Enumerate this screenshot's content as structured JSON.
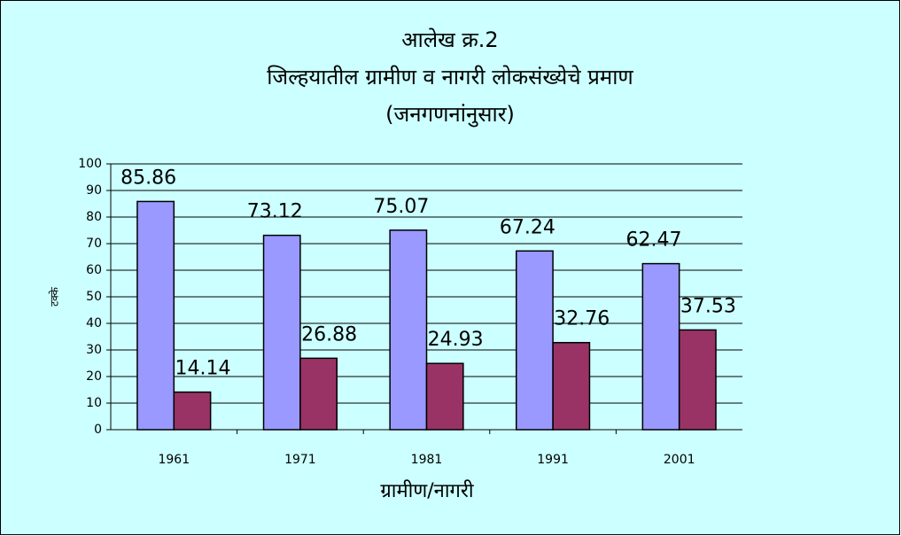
{
  "chart_data": {
    "type": "bar",
    "title": [
      "आलेख क्र.2",
      "जिल्हयातील ग्रामीण व नागरी लोकसंख्येचे प्रमाण",
      "(जनगणनांनुसार)"
    ],
    "x_label": "ग्रामीण/नागरी",
    "y_label": "टक्के",
    "categories": [
      "1961",
      "1971",
      "1981",
      "1991",
      "2001"
    ],
    "series": [
      {
        "color": "#9999ff",
        "values": [
          85.86,
          73.12,
          75.07,
          67.24,
          62.47
        ]
      },
      {
        "color": "#993366",
        "values": [
          14.14,
          26.88,
          24.93,
          32.76,
          37.53
        ]
      }
    ],
    "ylim": [
      0,
      100
    ],
    "yticks": [
      0,
      10,
      20,
      30,
      40,
      50,
      60,
      70,
      80,
      90,
      100
    ],
    "grid": true,
    "background": "#ccffff"
  }
}
